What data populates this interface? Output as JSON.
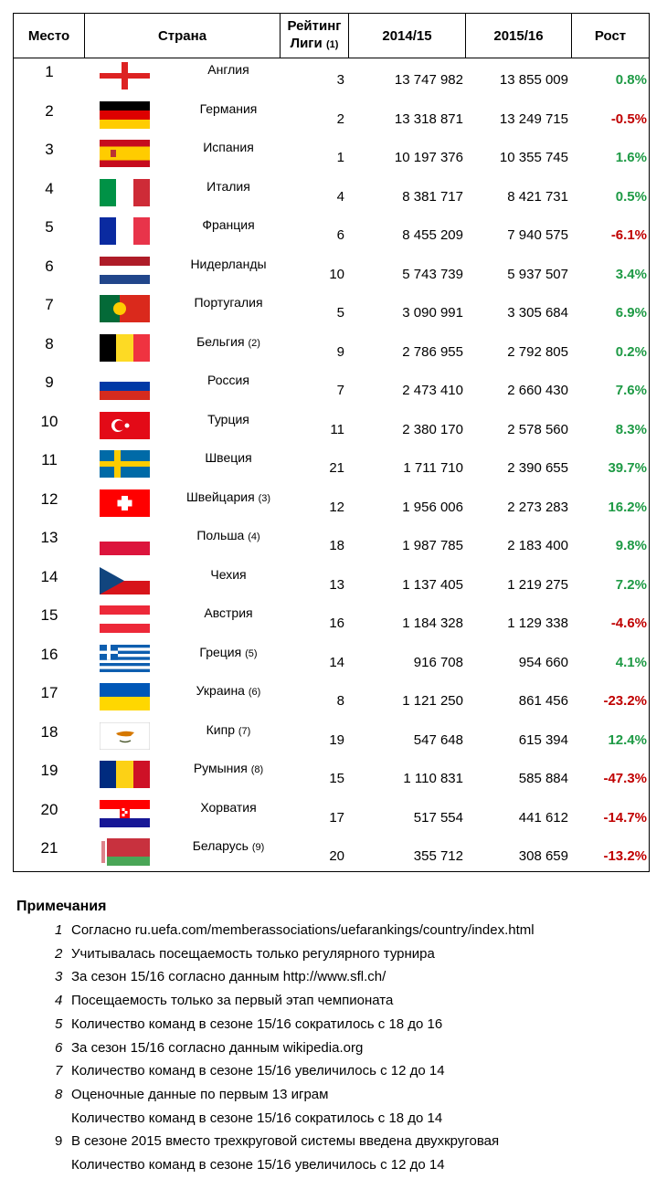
{
  "header": {
    "place": "Место",
    "country": "Страна",
    "rating_line1": "Рейтинг",
    "rating_line2": "Лиги",
    "rating_note": "(1)",
    "y1": "2014/15",
    "y2": "2015/16",
    "growth": "Рост"
  },
  "colors": {
    "positive": "#1e9a45",
    "negative": "#c00000"
  },
  "rows": [
    {
      "rank": "1",
      "flag": "england",
      "country": "Англия",
      "note": "",
      "rating": "3",
      "v2014": "13 747 982",
      "v2015": "13 855 009",
      "growth": "0.8%"
    },
    {
      "rank": "2",
      "flag": "germany",
      "country": "Германия",
      "note": "",
      "rating": "2",
      "v2014": "13 318 871",
      "v2015": "13 249 715",
      "growth": "-0.5%"
    },
    {
      "rank": "3",
      "flag": "spain",
      "country": "Испания",
      "note": "",
      "rating": "1",
      "v2014": "10 197 376",
      "v2015": "10 355 745",
      "growth": "1.6%"
    },
    {
      "rank": "4",
      "flag": "italy",
      "country": "Италия",
      "note": "",
      "rating": "4",
      "v2014": "8 381 717",
      "v2015": "8 421 731",
      "growth": "0.5%"
    },
    {
      "rank": "5",
      "flag": "france",
      "country": "Франция",
      "note": "",
      "rating": "6",
      "v2014": "8 455 209",
      "v2015": "7 940 575",
      "growth": "-6.1%"
    },
    {
      "rank": "6",
      "flag": "netherlands",
      "country": "Нидерланды",
      "note": "",
      "rating": "10",
      "v2014": "5 743 739",
      "v2015": "5 937 507",
      "growth": "3.4%"
    },
    {
      "rank": "7",
      "flag": "portugal",
      "country": "Португалия",
      "note": "",
      "rating": "5",
      "v2014": "3 090 991",
      "v2015": "3 305 684",
      "growth": "6.9%"
    },
    {
      "rank": "8",
      "flag": "belgium",
      "country": "Бельгия",
      "note": "(2)",
      "rating": "9",
      "v2014": "2 786 955",
      "v2015": "2 792 805",
      "growth": "0.2%"
    },
    {
      "rank": "9",
      "flag": "russia",
      "country": "Россия",
      "note": "",
      "rating": "7",
      "v2014": "2 473 410",
      "v2015": "2 660 430",
      "growth": "7.6%"
    },
    {
      "rank": "10",
      "flag": "turkey",
      "country": "Турция",
      "note": "",
      "rating": "11",
      "v2014": "2 380 170",
      "v2015": "2 578 560",
      "growth": "8.3%"
    },
    {
      "rank": "11",
      "flag": "sweden",
      "country": "Швеция",
      "note": "",
      "rating": "21",
      "v2014": "1 711 710",
      "v2015": "2 390 655",
      "growth": "39.7%"
    },
    {
      "rank": "12",
      "flag": "switzerland",
      "country": "Швейцария",
      "note": "(3)",
      "rating": "12",
      "v2014": "1 956 006",
      "v2015": "2 273 283",
      "growth": "16.2%"
    },
    {
      "rank": "13",
      "flag": "poland",
      "country": "Польша",
      "note": "(4)",
      "rating": "18",
      "v2014": "1 987 785",
      "v2015": "2 183 400",
      "growth": "9.8%"
    },
    {
      "rank": "14",
      "flag": "czech",
      "country": "Чехия",
      "note": "",
      "rating": "13",
      "v2014": "1 137 405",
      "v2015": "1 219 275",
      "growth": "7.2%"
    },
    {
      "rank": "15",
      "flag": "austria",
      "country": "Австрия",
      "note": "",
      "rating": "16",
      "v2014": "1 184 328",
      "v2015": "1 129 338",
      "growth": "-4.6%"
    },
    {
      "rank": "16",
      "flag": "greece",
      "country": "Греция",
      "note": "(5)",
      "rating": "14",
      "v2014": "916 708",
      "v2015": "954 660",
      "growth": "4.1%"
    },
    {
      "rank": "17",
      "flag": "ukraine",
      "country": "Украина",
      "note": "(6)",
      "rating": "8",
      "v2014": "1 121 250",
      "v2015": "861 456",
      "growth": "-23.2%"
    },
    {
      "rank": "18",
      "flag": "cyprus",
      "country": "Кипр",
      "note": "(7)",
      "rating": "19",
      "v2014": "547 648",
      "v2015": "615 394",
      "growth": "12.4%"
    },
    {
      "rank": "19",
      "flag": "romania",
      "country": "Румыния",
      "note": "(8)",
      "rating": "15",
      "v2014": "1 110 831",
      "v2015": "585 884",
      "growth": "-47.3%"
    },
    {
      "rank": "20",
      "flag": "croatia",
      "country": "Хорватия",
      "note": "",
      "rating": "17",
      "v2014": "517 554",
      "v2015": "441 612",
      "growth": "-14.7%"
    },
    {
      "rank": "21",
      "flag": "belarus",
      "country": "Беларусь",
      "note": "(9)",
      "rating": "20",
      "v2014": "355 712",
      "v2015": "308 659",
      "growth": "-13.2%"
    }
  ],
  "notes": {
    "title": "Примечания",
    "items": [
      {
        "n": "1",
        "text": "Согласно ru.uefa.com/memberassociations/uefarankings/country/index.html"
      },
      {
        "n": "2",
        "text": "Учитывалась посещаемость только регулярного турнира"
      },
      {
        "n": "3",
        "text": "За сезон 15/16 согласно данным http://www.sfl.ch/"
      },
      {
        "n": "4",
        "text": "Посещаемость только за первый этап чемпионата"
      },
      {
        "n": "5",
        "text": "Количество команд в сезоне 15/16 сократилось с 18 до 16"
      },
      {
        "n": "6",
        "text": "За сезон 15/16 согласно данным wikipedia.org"
      },
      {
        "n": "7",
        "text": "Количество команд в сезоне 15/16 увеличилось с 12 до 14"
      },
      {
        "n": "8",
        "text": "Оценочные данные по первым 13 играм"
      },
      {
        "n": "",
        "text": "Количество команд в сезоне 15/16 сократилось с 18 до 14"
      },
      {
        "n": "9",
        "text": "В сезоне 2015 вместо трехкруговой системы введена двухкруговая"
      },
      {
        "n": "",
        "text": "Количество команд в сезоне 15/16 увеличилось с 12 до 14"
      }
    ]
  }
}
